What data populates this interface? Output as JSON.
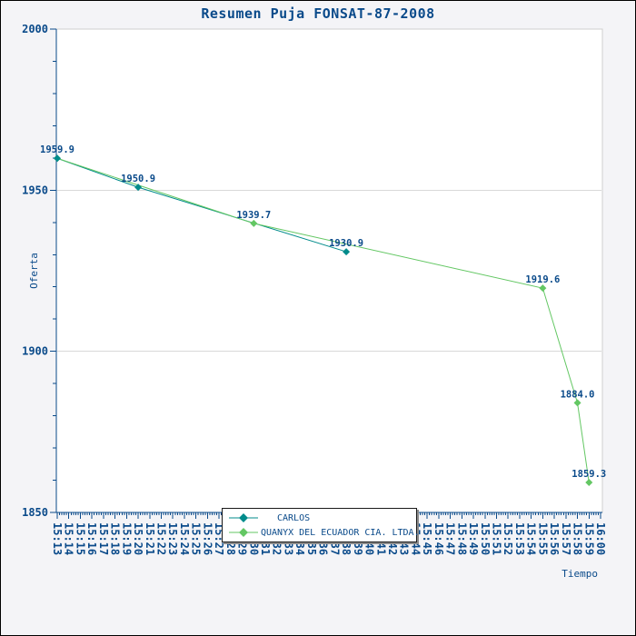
{
  "title": "Resumen Puja FONSAT-87-2008",
  "colors": {
    "text_navy": "#0a4a8a",
    "axis": "#0a4a8a",
    "grid": "#d8d8d8",
    "plot_border": "#cfcfcf",
    "plot_background": "#ffffff",
    "page_background": "#f4f4f7",
    "series_carlos": "#008b8b",
    "series_quanyx": "#63c763"
  },
  "chart_data": {
    "type": "line",
    "title": "Resumen Puja FONSAT-87-2008",
    "xlabel": "Tiempo",
    "ylabel": "Oferta",
    "ylim": [
      1850,
      2000
    ],
    "y_major_ticks": [
      2000,
      1950,
      1900,
      1850
    ],
    "y_minor_step": 10,
    "gridlines_y": [
      1950,
      1900
    ],
    "grid": "horizontal-only",
    "legend_position": "bottom-center",
    "x_categories": [
      "15:13",
      "15:14",
      "15:15",
      "15:16",
      "15:17",
      "15:18",
      "15:19",
      "15:20",
      "15:21",
      "15:22",
      "15:23",
      "15:24",
      "15:25",
      "15:26",
      "15:27",
      "15:28",
      "15:29",
      "15:30",
      "15:31",
      "15:32",
      "15:33",
      "15:34",
      "15:35",
      "15:36",
      "15:37",
      "15:38",
      "15:39",
      "15:40",
      "15:41",
      "15:42",
      "15:43",
      "15:44",
      "15:45",
      "15:46",
      "15:47",
      "15:48",
      "15:49",
      "15:50",
      "15:51",
      "15:52",
      "15:53",
      "15:54",
      "15:55",
      "15:56",
      "15:57",
      "15:58",
      "15:59",
      "16:00"
    ],
    "series": [
      {
        "name": "CARLOS",
        "color": "#008b8b",
        "points": [
          {
            "t": "15:13",
            "v": 1959.9
          },
          {
            "t": "15:20",
            "v": 1950.9
          },
          {
            "t": "15:38",
            "v": 1930.9
          }
        ]
      },
      {
        "name": "QUANYX DEL ECUADOR CIA. LTDA.",
        "color": "#63c763",
        "points": [
          {
            "t": "15:13",
            "v": 1959.9
          },
          {
            "t": "15:30",
            "v": 1939.7
          },
          {
            "t": "15:55",
            "v": 1919.6
          },
          {
            "t": "15:58",
            "v": 1884.0
          },
          {
            "t": "15:59",
            "v": 1859.3
          }
        ]
      }
    ],
    "point_labels": [
      {
        "t": "15:13",
        "v": 1959.9,
        "text": "1959.9"
      },
      {
        "t": "15:20",
        "v": 1950.9,
        "text": "1950.9"
      },
      {
        "t": "15:30",
        "v": 1939.7,
        "text": "1939.7"
      },
      {
        "t": "15:38",
        "v": 1930.9,
        "text": "1930.9"
      },
      {
        "t": "15:55",
        "v": 1919.6,
        "text": "1919.6"
      },
      {
        "t": "15:58",
        "v": 1884.0,
        "text": "1884.0"
      },
      {
        "t": "15:59",
        "v": 1859.3,
        "text": "1859.3"
      }
    ]
  }
}
